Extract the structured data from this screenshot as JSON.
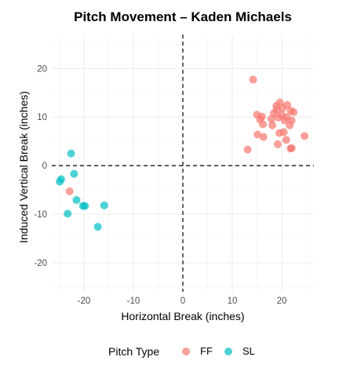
{
  "chart_data": {
    "type": "scatter",
    "title": "Pitch Movement – Kaden Michaels",
    "xlabel": "Horizontal Break (inches)",
    "ylabel": "Induced Vertical Break (inches)",
    "xlim": [
      -26.5,
      26.5
    ],
    "ylim": [
      -26,
      27
    ],
    "x_ticks": [
      -20,
      -10,
      0,
      10,
      20
    ],
    "y_ticks": [
      -20,
      -10,
      0,
      10,
      20
    ],
    "reference_lines": {
      "x": 0,
      "y": 0,
      "style": "dashed"
    },
    "grid": true,
    "legend": {
      "title": "Pitch Type",
      "position": "bottom",
      "entries": [
        {
          "label": "FF",
          "color": "#F8766D"
        },
        {
          "label": "SL",
          "color": "#00BFC4"
        }
      ]
    },
    "series": [
      {
        "name": "FF",
        "color": "#F8766D",
        "points": [
          [
            14.2,
            17.7
          ],
          [
            19.6,
            13.0
          ],
          [
            21.1,
            12.5
          ],
          [
            18.9,
            12.3
          ],
          [
            20.2,
            11.8
          ],
          [
            19.0,
            11.5
          ],
          [
            21.8,
            11.3
          ],
          [
            22.4,
            11.0
          ],
          [
            18.4,
            10.8
          ],
          [
            15.0,
            10.5
          ],
          [
            20.0,
            10.4
          ],
          [
            16.0,
            10.1
          ],
          [
            21.0,
            10.0
          ],
          [
            19.3,
            9.9
          ],
          [
            17.9,
            9.6
          ],
          [
            15.6,
            9.5
          ],
          [
            22.0,
            9.3
          ],
          [
            20.6,
            9.3
          ],
          [
            16.2,
            8.5
          ],
          [
            21.6,
            8.3
          ],
          [
            18.1,
            8.3
          ],
          [
            20.4,
            6.9
          ],
          [
            19.5,
            6.7
          ],
          [
            15.1,
            6.4
          ],
          [
            24.6,
            6.1
          ],
          [
            16.3,
            5.9
          ],
          [
            20.9,
            5.3
          ],
          [
            19.2,
            4.4
          ],
          [
            22.0,
            3.6
          ],
          [
            21.8,
            3.5
          ],
          [
            13.1,
            3.3
          ],
          [
            -22.9,
            -5.3
          ]
        ]
      },
      {
        "name": "SL",
        "color": "#00BFC4",
        "points": [
          [
            -22.6,
            2.5
          ],
          [
            -22.0,
            -1.7
          ],
          [
            -24.6,
            -2.8
          ],
          [
            -24.9,
            -3.3
          ],
          [
            -21.5,
            -7.1
          ],
          [
            -20.2,
            -8.3
          ],
          [
            -19.8,
            -8.3
          ],
          [
            -15.9,
            -8.2
          ],
          [
            -23.3,
            -9.9
          ],
          [
            -17.2,
            -12.6
          ]
        ]
      }
    ]
  }
}
